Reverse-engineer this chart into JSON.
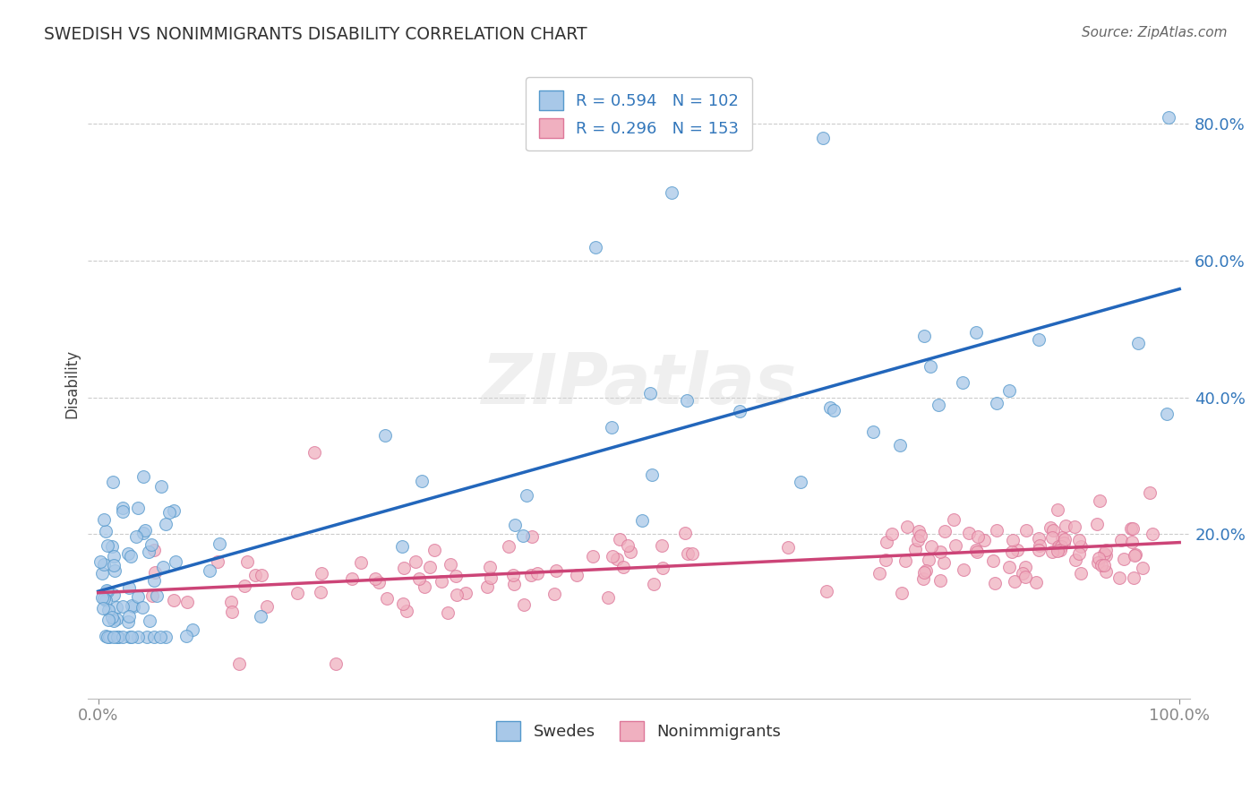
{
  "title": "SWEDISH VS NONIMMIGRANTS DISABILITY CORRELATION CHART",
  "source": "Source: ZipAtlas.com",
  "ylabel": "Disability",
  "swedes_color": "#a8c8e8",
  "swedes_edge_color": "#5599cc",
  "nonimm_color": "#f0b0c0",
  "nonimm_edge_color": "#dd7799",
  "swedes_line_color": "#2266bb",
  "nonimm_line_color": "#cc4477",
  "swedes_R": 0.594,
  "swedes_N": 102,
  "nonimm_R": 0.296,
  "nonimm_N": 153,
  "background_color": "#ffffff",
  "grid_color": "#cccccc",
  "title_color": "#333333",
  "axis_label_color": "#3377bb",
  "source_color": "#666666"
}
